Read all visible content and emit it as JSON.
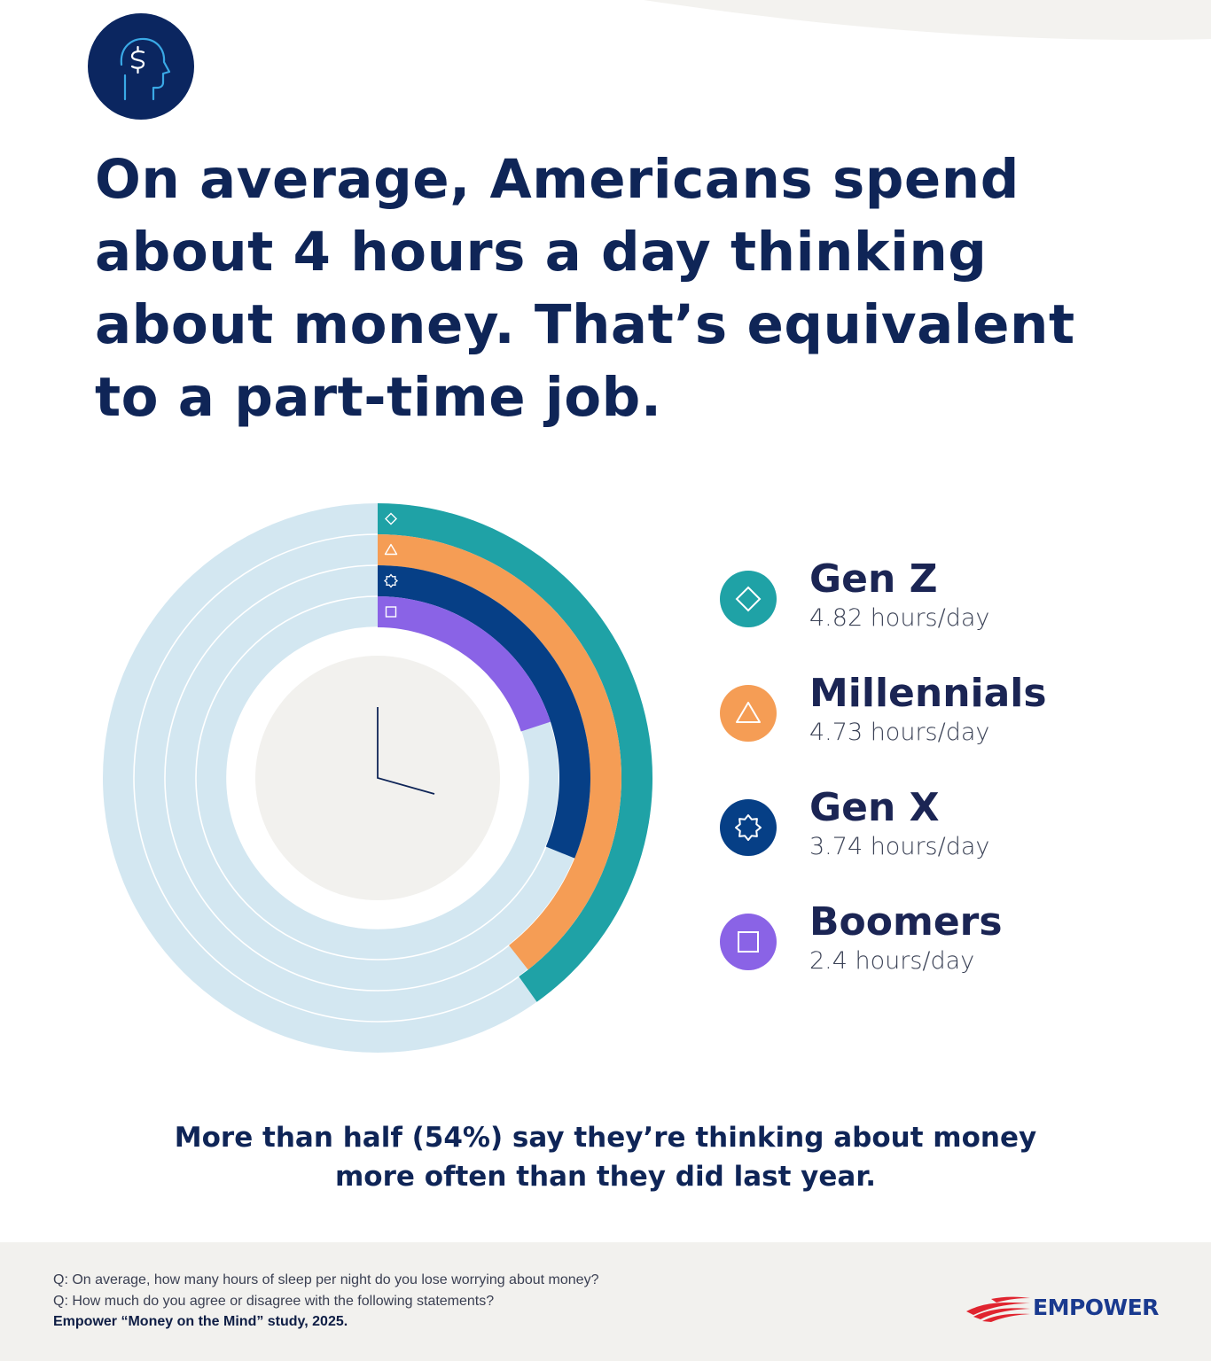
{
  "header": {
    "icon": "dollar-head-icon",
    "title": "On average, Americans spend about 4 hours a day thinking about money. That’s equivalent to a part-time job."
  },
  "chart_data": {
    "type": "radial-bar",
    "unit": "hours/day",
    "full_scale": 12,
    "series": [
      {
        "name": "Gen Z",
        "value": 4.82,
        "label": "4.82 hours/day",
        "color": "#1fa2a6",
        "icon": "diamond-icon"
      },
      {
        "name": "Millennials",
        "value": 4.73,
        "label": "4.73 hours/day",
        "color": "#f59d55",
        "icon": "triangle-icon"
      },
      {
        "name": "Gen X",
        "value": 3.74,
        "label": "3.74 hours/day",
        "color": "#063f86",
        "icon": "star-badge-icon"
      },
      {
        "name": "Boomers",
        "value": 2.4,
        "label": "2.4 hours/day",
        "color": "#8a63e6",
        "icon": "square-icon"
      }
    ],
    "track_color": "#d3e7f1",
    "center_icon": "clock-hands-icon",
    "legend_position": "right"
  },
  "takeaway": {
    "line1": "More than half (54%) say they’re thinking about money",
    "line2": "more often than they did last year."
  },
  "footer": {
    "q1": "Q: On average, how many hours of sleep per night do you lose worrying about money?",
    "q2": "Q: How much do you agree or disagree with the following statements?",
    "source": "Empower “Money on the Mind” study, 2025.",
    "logo_text": "EMPOWER",
    "logo_icon": "flag-stripes-icon"
  },
  "colors": {
    "navy": "#0f2557",
    "footer_bg": "#f2f1ee",
    "brand_blue": "#1a3a8f",
    "brand_red": "#e0242f"
  }
}
